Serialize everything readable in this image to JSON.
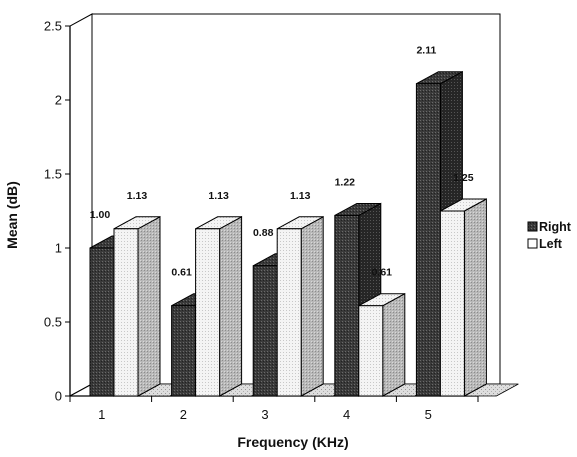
{
  "chart_data": {
    "type": "bar",
    "categories": [
      "1",
      "2",
      "3",
      "4",
      "5"
    ],
    "series": [
      {
        "name": "Right",
        "values": [
          1.0,
          0.61,
          0.88,
          1.22,
          2.11
        ],
        "labels": [
          "1.00",
          "0.61",
          "0.88",
          "1.22",
          "2.11"
        ]
      },
      {
        "name": "Left",
        "values": [
          1.13,
          1.13,
          1.13,
          0.61,
          1.25
        ],
        "labels": [
          "1.13",
          "1.13",
          "1.13",
          "0.61",
          "1.25"
        ]
      }
    ],
    "xlabel": "Frequency (KHz)",
    "ylabel": "Mean (dB)",
    "ylim": [
      0,
      2.5
    ],
    "yticks": [
      "0",
      "0.5",
      "1",
      "1.5",
      "2",
      "2.5"
    ],
    "grid": false,
    "legend_position": "right",
    "style": "3d-bar",
    "colors": {
      "Right": "#3a3a3a",
      "Left": "#f2f2f2"
    }
  }
}
